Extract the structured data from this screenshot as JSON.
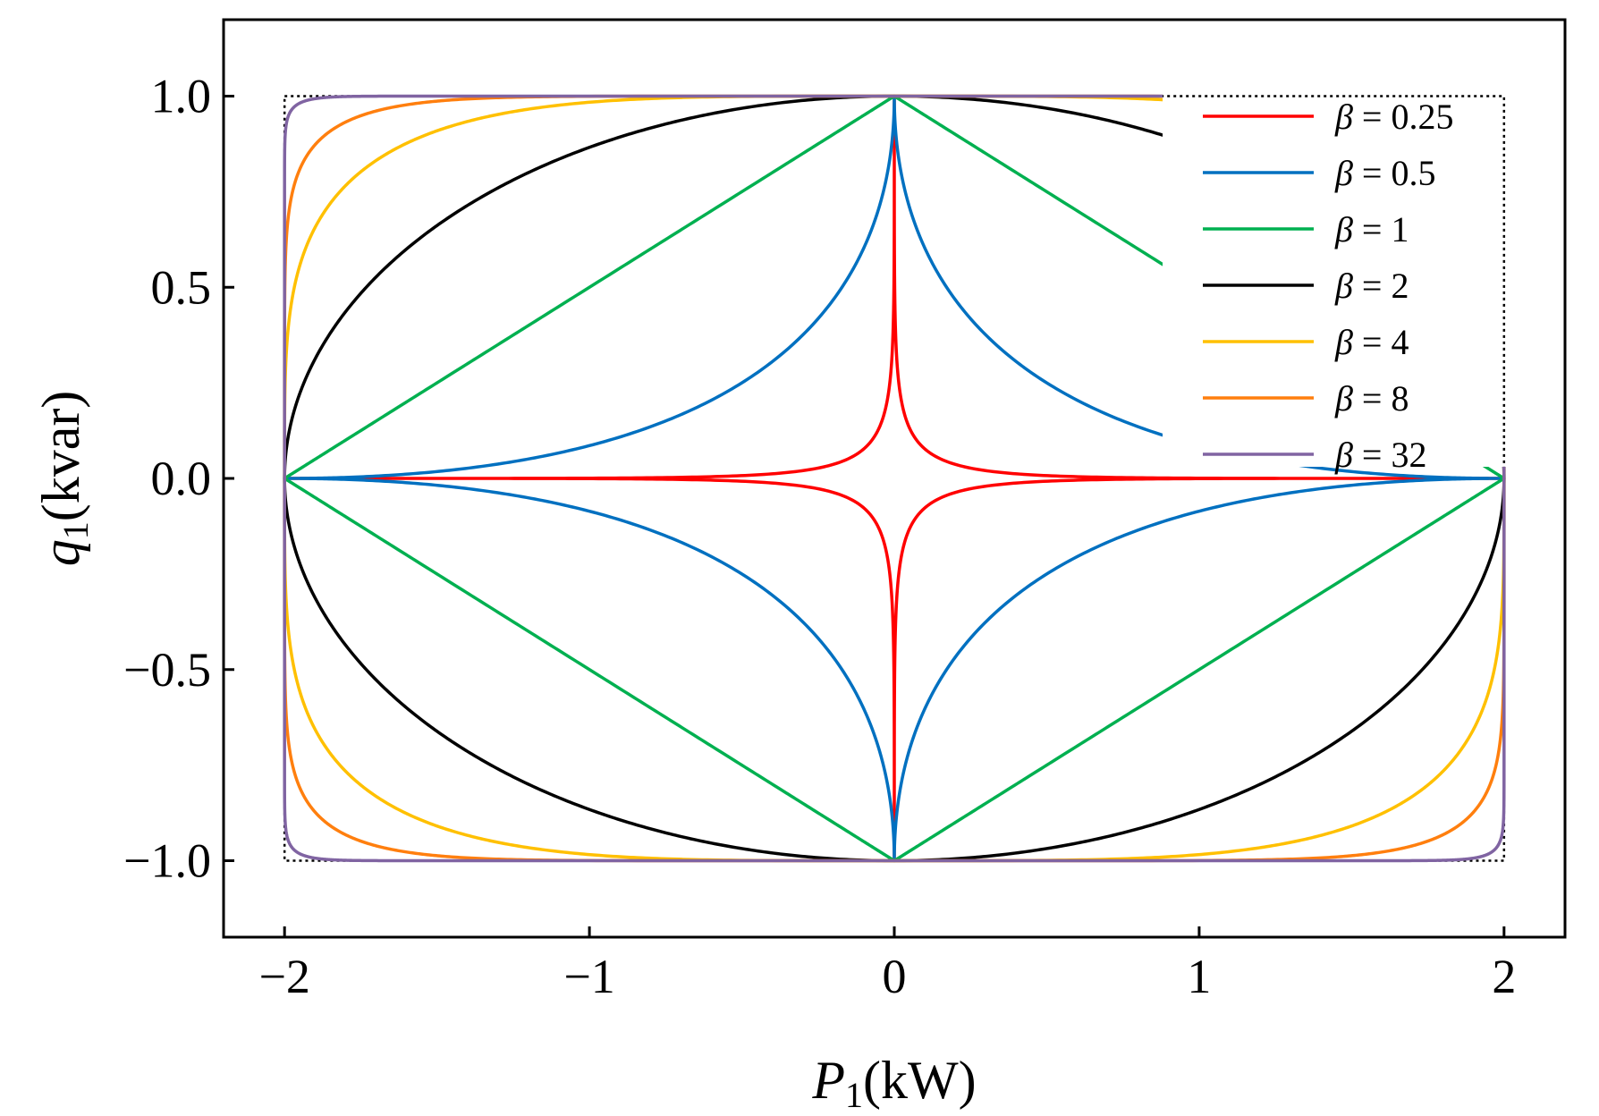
{
  "chart_data": {
    "type": "line",
    "xlabel": {
      "symbol": "P",
      "subscript": "1",
      "unit": "(kW)"
    },
    "ylabel": {
      "symbol": "q",
      "subscript": "1",
      "unit": "(kvar)"
    },
    "xlim": [
      -2.2,
      2.2
    ],
    "ylim": [
      -1.2,
      1.2
    ],
    "x_ticks": [
      -2,
      -1,
      0,
      1,
      2
    ],
    "x_tick_labels": [
      "−2",
      "−1",
      "0",
      "1",
      "2"
    ],
    "y_ticks": [
      1.0,
      0.5,
      0.0,
      -0.5,
      -1.0
    ],
    "y_tick_labels": [
      "1.0",
      "0.5",
      "0.0",
      "−0.5",
      "−1.0"
    ],
    "curve_family": "superellipse |P/2|^beta + |q|^beta = 1",
    "p_max": 2,
    "q_max": 1,
    "bounding_box_style": "dotted black rectangle at P = ±2, q = ±1",
    "grid": false,
    "legend_position": "top-right",
    "series": [
      {
        "name": "β = 0.25",
        "beta": 0.25,
        "color": "#ff0000"
      },
      {
        "name": "β = 0.5",
        "beta": 0.5,
        "color": "#0070c0"
      },
      {
        "name": "β = 1",
        "beta": 1,
        "color": "#00b050"
      },
      {
        "name": "β = 2",
        "beta": 2,
        "color": "#000000"
      },
      {
        "name": "β = 4",
        "beta": 4,
        "color": "#ffc000"
      },
      {
        "name": "β = 8",
        "beta": 8,
        "color": "#ff7f0e"
      },
      {
        "name": "β = 32",
        "beta": 32,
        "color": "#8064a2"
      }
    ]
  }
}
